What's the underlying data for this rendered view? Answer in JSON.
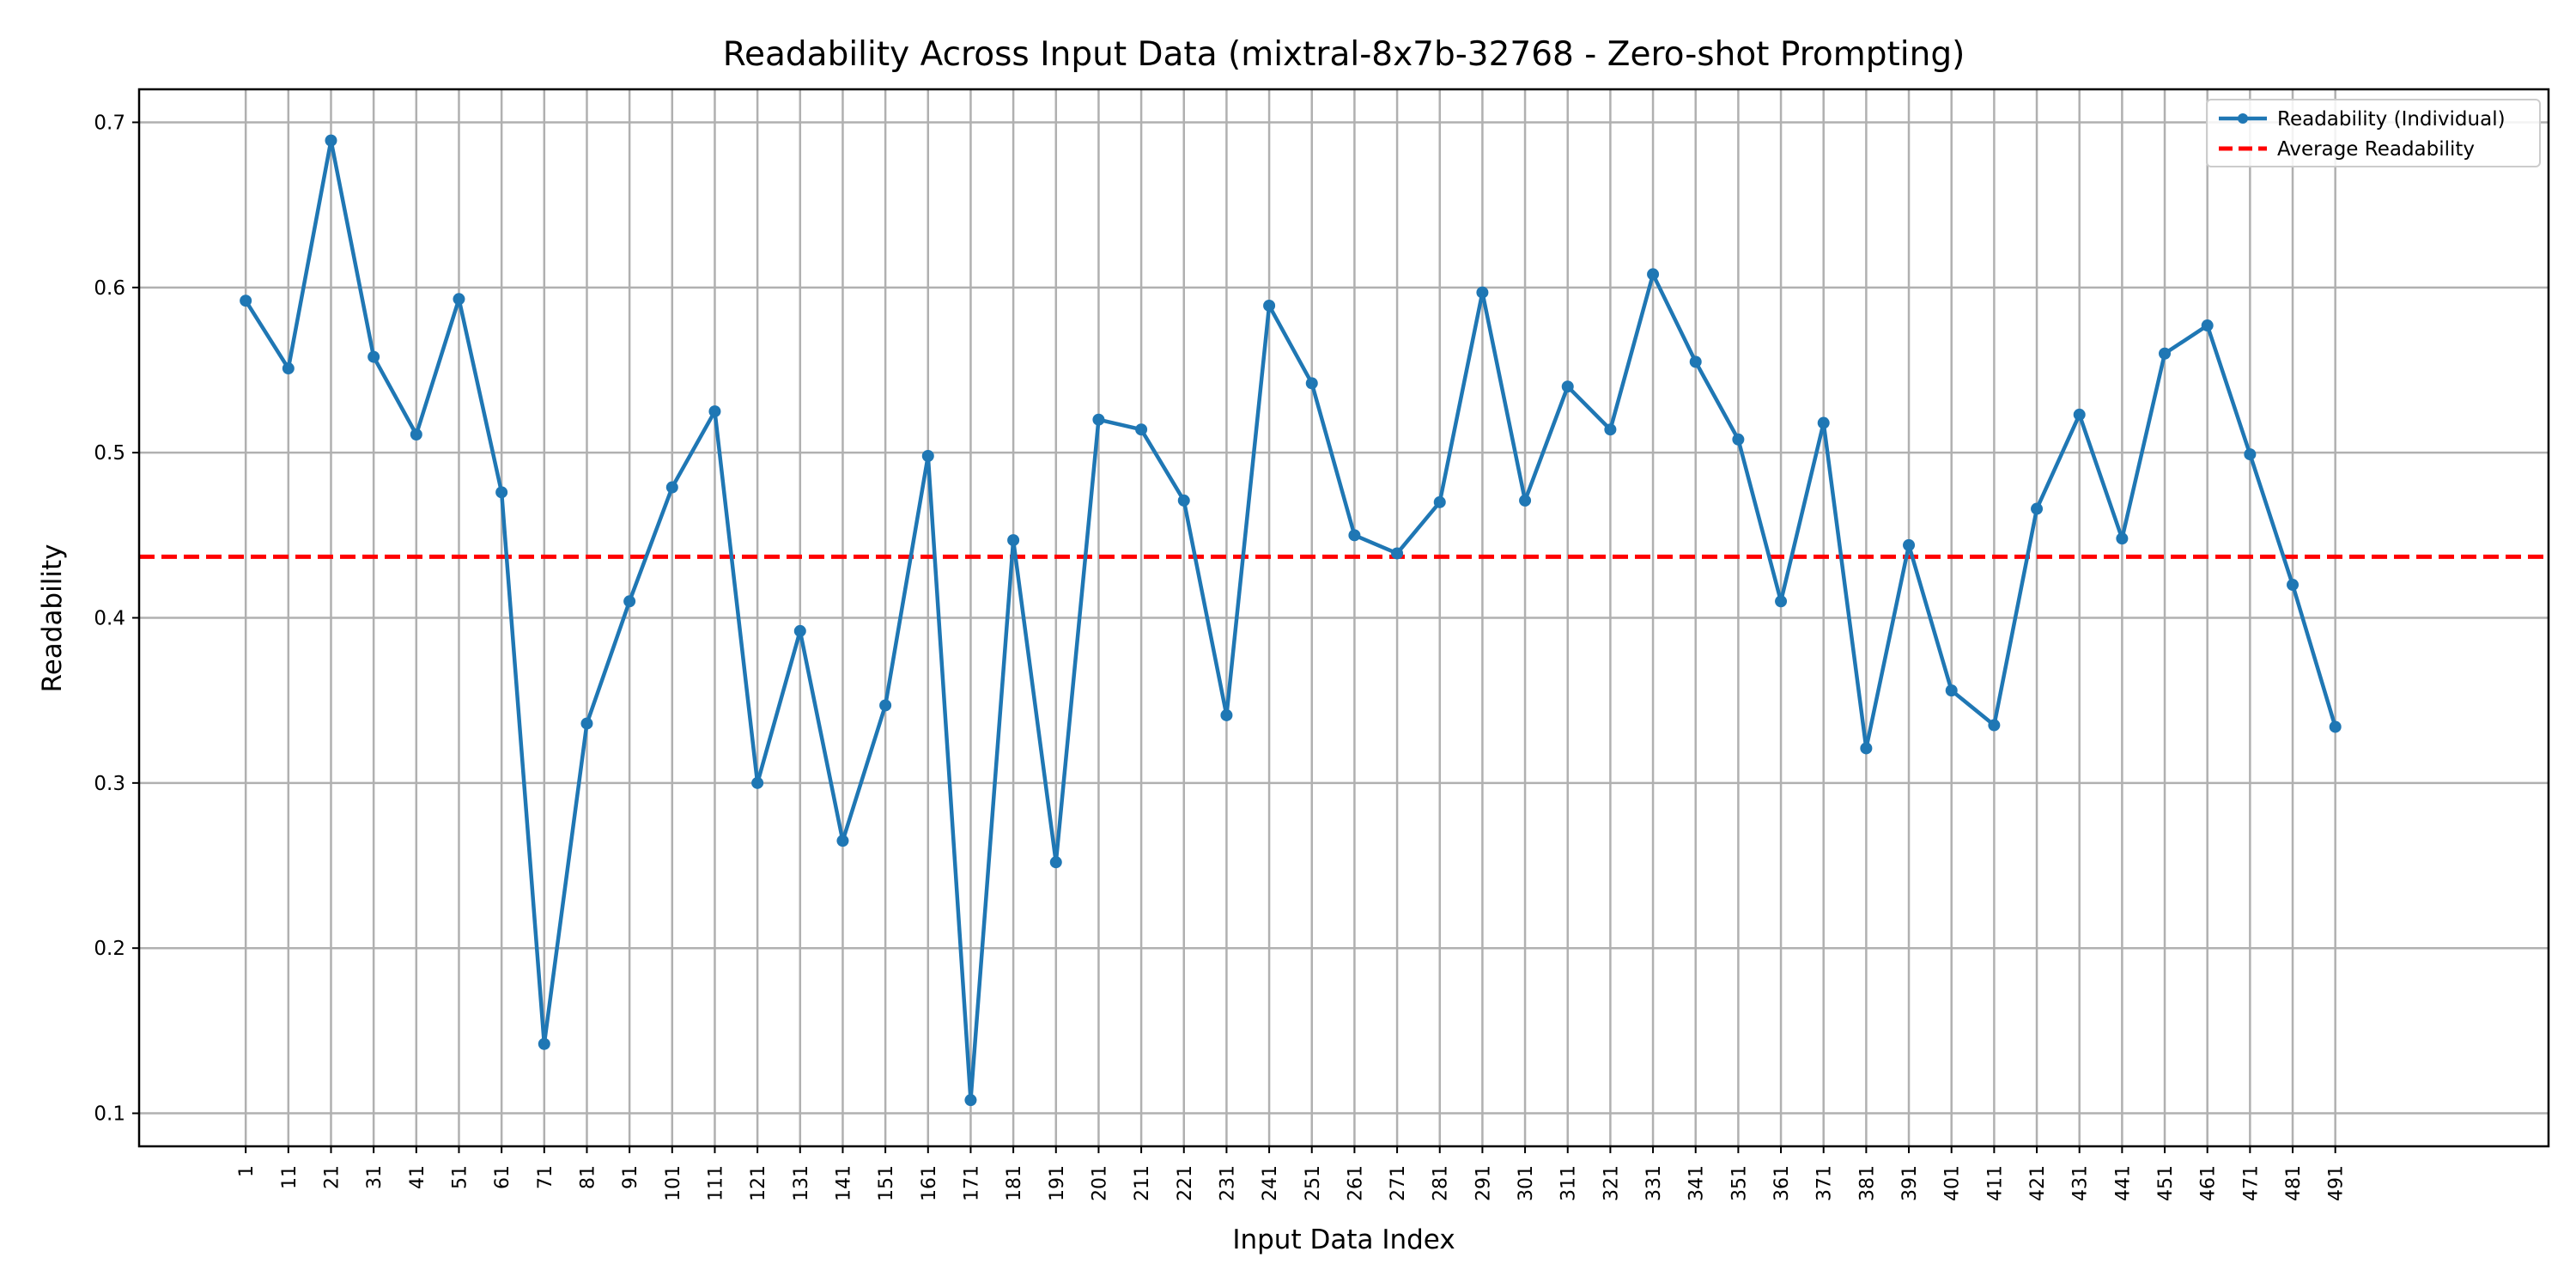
{
  "chart_data": {
    "type": "line",
    "title": "Readability Across Input Data (mixtral-8x7b-32768 - Zero-shot Prompting)",
    "xlabel": "Input Data Index",
    "ylabel": "Readability",
    "ylim": [
      0.08,
      0.72
    ],
    "yticks": [
      "0.1",
      "0.2",
      "0.3",
      "0.4",
      "0.5",
      "0.6",
      "0.7"
    ],
    "x": [
      1,
      11,
      21,
      31,
      41,
      51,
      61,
      71,
      81,
      91,
      101,
      111,
      121,
      131,
      141,
      151,
      161,
      171,
      181,
      191,
      201,
      211,
      221,
      231,
      241,
      251,
      261,
      271,
      281,
      291,
      301,
      311,
      321,
      331,
      341,
      351,
      361,
      371,
      381,
      391,
      401,
      411,
      421,
      431,
      441,
      451,
      461,
      471,
      481,
      491
    ],
    "xticks": [
      "1",
      "11",
      "21",
      "31",
      "41",
      "51",
      "61",
      "71",
      "81",
      "91",
      "101",
      "111",
      "121",
      "131",
      "141",
      "151",
      "161",
      "171",
      "181",
      "191",
      "201",
      "211",
      "221",
      "231",
      "241",
      "251",
      "261",
      "271",
      "281",
      "291",
      "301",
      "311",
      "321",
      "331",
      "341",
      "351",
      "361",
      "371",
      "381",
      "391",
      "401",
      "411",
      "421",
      "431",
      "441",
      "451",
      "461",
      "471",
      "481",
      "491"
    ],
    "grid": true,
    "legend_position": "top-right",
    "series": [
      {
        "name": "Readability (Individual)",
        "style": "solid line with circle markers",
        "color": "#1f77b4",
        "values": [
          0.592,
          0.551,
          0.689,
          0.558,
          0.511,
          0.593,
          0.476,
          0.142,
          0.336,
          0.41,
          0.479,
          0.525,
          0.3,
          0.392,
          0.265,
          0.347,
          0.498,
          0.108,
          0.447,
          0.252,
          0.52,
          0.514,
          0.471,
          0.341,
          0.589,
          0.542,
          0.45,
          0.439,
          0.47,
          0.597,
          0.471,
          0.54,
          0.514,
          0.608,
          0.555,
          0.508,
          0.41,
          0.518,
          0.321,
          0.444,
          0.356,
          0.335,
          0.466,
          0.523,
          0.448,
          0.56,
          0.577,
          0.499,
          0.42,
          0.334
        ]
      },
      {
        "name": "Average Readability",
        "style": "dashed horizontal line",
        "color": "#ff0000",
        "value": 0.437
      }
    ]
  }
}
